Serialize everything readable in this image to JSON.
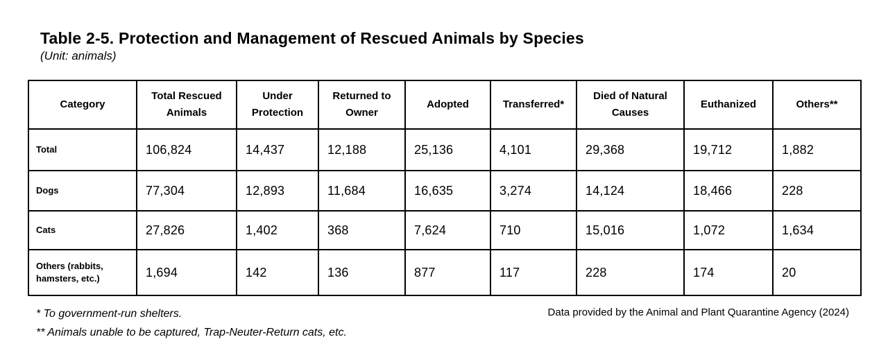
{
  "title": "Table 2-5. Protection and Management of Rescued Animals by Species",
  "unit": "(Unit: animals)",
  "table": {
    "headers": [
      "Category",
      "Total Rescued Animals",
      "Under Protection",
      "Returned to Owner",
      "Adopted",
      "Transferred*",
      "Died of Natural Causes",
      "Euthanized",
      "Others**"
    ],
    "rows": [
      {
        "category": "Total",
        "values": [
          "106,824",
          "14,437",
          "12,188",
          "25,136",
          "4,101",
          "29,368",
          "19,712",
          "1,882"
        ]
      },
      {
        "category": "Dogs",
        "values": [
          "77,304",
          "12,893",
          "11,684",
          "16,635",
          "3,274",
          "14,124",
          "18,466",
          "228"
        ]
      },
      {
        "category": "Cats",
        "values": [
          "27,826",
          "1,402",
          "368",
          "7,624",
          "710",
          "15,016",
          "1,072",
          "1,634"
        ]
      },
      {
        "category": "Others (rabbits, hamsters, etc.)",
        "values": [
          "1,694",
          "142",
          "136",
          "877",
          "117",
          "228",
          "174",
          "20"
        ]
      }
    ]
  },
  "footnotes": [
    "* To government-run shelters.",
    "** Animals unable to be captured, Trap-Neuter-Return cats, etc."
  ],
  "source": "Data provided by the Animal and Plant Quarantine Agency (2024)",
  "colors": {
    "text": "#000000",
    "border": "#000000",
    "background": "#ffffff"
  },
  "chart_data": {
    "type": "table",
    "title": "Table 2-5. Protection and Management of Rescued Animals by Species",
    "unit": "animals",
    "columns": [
      "Total Rescued Animals",
      "Under Protection",
      "Returned to Owner",
      "Adopted",
      "Transferred",
      "Died of Natural Causes",
      "Euthanized",
      "Others"
    ],
    "rows": [
      {
        "category": "Total",
        "values": [
          106824,
          14437,
          12188,
          25136,
          4101,
          29368,
          19712,
          1882
        ]
      },
      {
        "category": "Dogs",
        "values": [
          77304,
          12893,
          11684,
          16635,
          3274,
          14124,
          18466,
          228
        ]
      },
      {
        "category": "Cats",
        "values": [
          27826,
          1402,
          368,
          7624,
          710,
          15016,
          1072,
          1634
        ]
      },
      {
        "category": "Others (rabbits, hamsters, etc.)",
        "values": [
          1694,
          142,
          136,
          877,
          117,
          228,
          174,
          20
        ]
      }
    ],
    "footnotes": [
      "* To government-run shelters.",
      "** Animals unable to be captured, Trap-Neuter-Return cats, etc."
    ],
    "source": "Data provided by the Animal and Plant Quarantine Agency (2024)"
  }
}
